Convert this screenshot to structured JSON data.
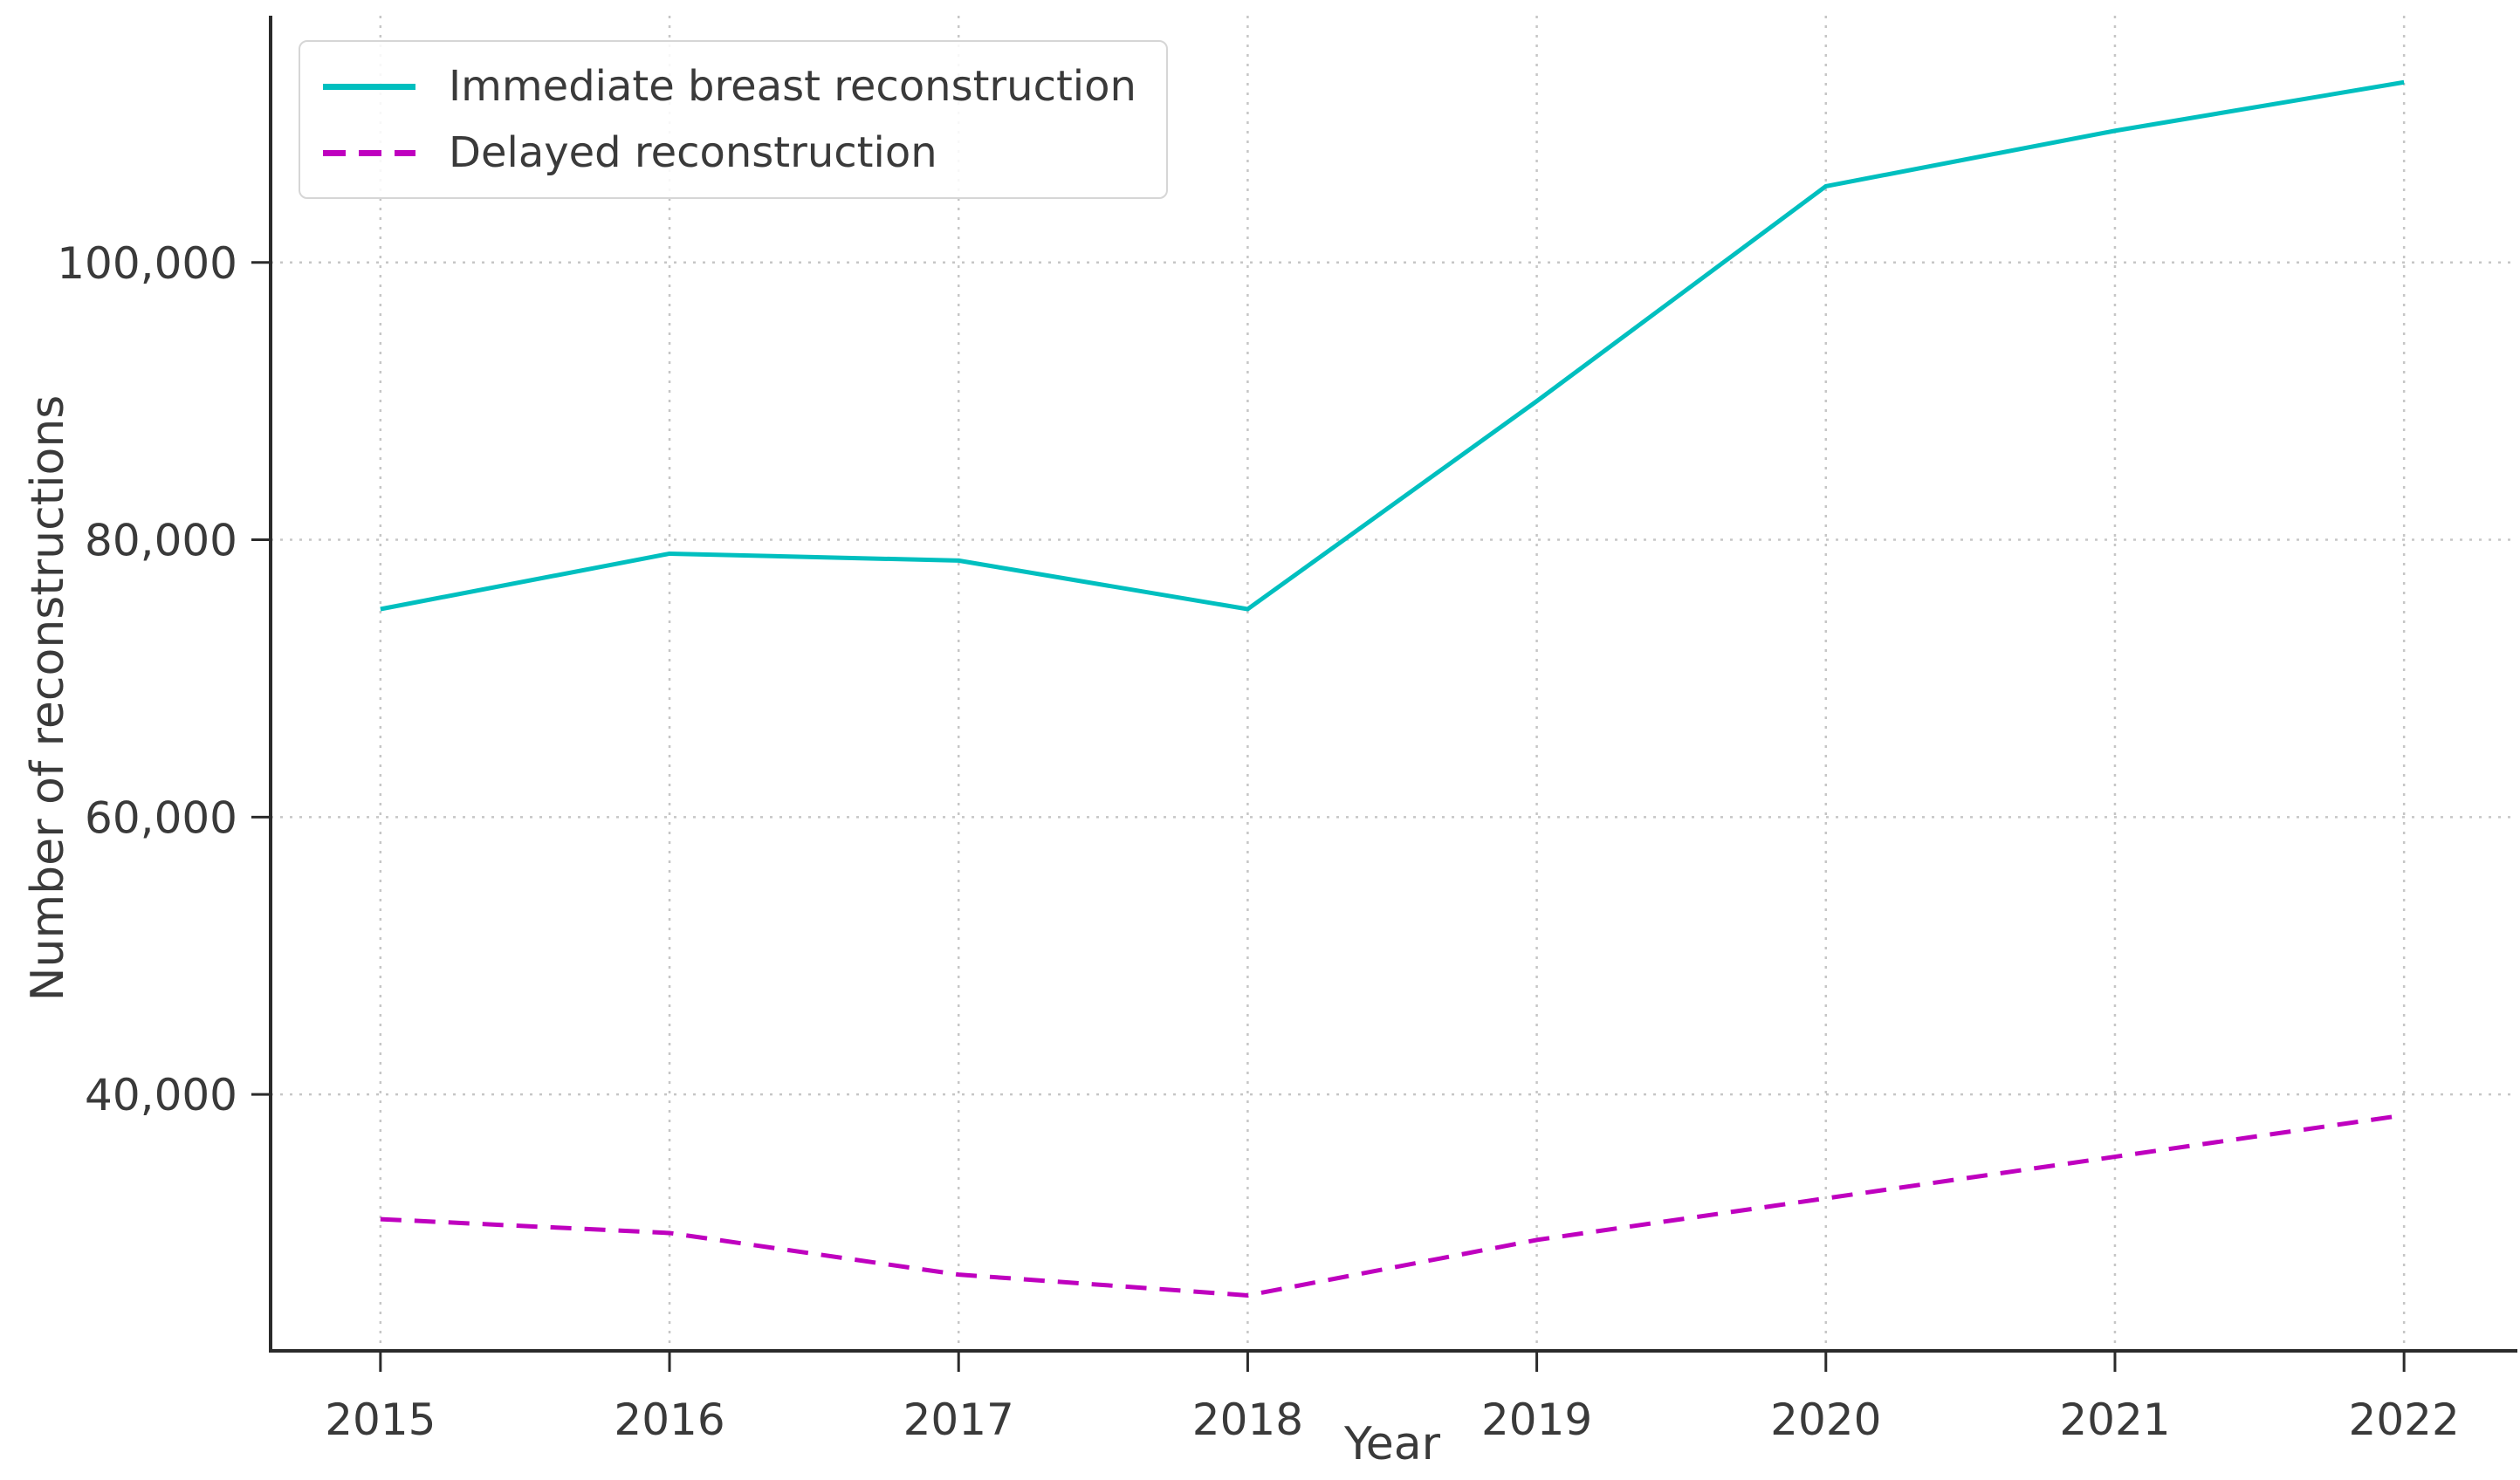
{
  "figure": {
    "background": "#ffffff",
    "text_color": "#3a3a3a",
    "axis_color": "#2b2b2b",
    "grid_color": "#c6c6c6"
  },
  "chart_data": {
    "type": "line",
    "title": "",
    "xlabel": "Year",
    "ylabel": "Number of reconstructions",
    "categories": [
      2015,
      2016,
      2017,
      2018,
      2019,
      2020,
      2021,
      2022
    ],
    "xtick_labels": [
      "2015",
      "2016",
      "2017",
      "2018",
      "2019",
      "2020",
      "2021",
      "2022"
    ],
    "ytick_values": [
      40000,
      60000,
      80000,
      100000
    ],
    "ytick_labels": [
      "40,000",
      "60,000",
      "80,000",
      "100,000"
    ],
    "xlim": [
      2014.62,
      2022.38
    ],
    "ylim": [
      21500,
      117800
    ],
    "grid": true,
    "grid_style": "dotted",
    "legend_position": "upper-left",
    "series": [
      {
        "name": "Immediate breast reconstruction",
        "color": "#00bfbf",
        "style": "solid",
        "values": [
          75000,
          79000,
          78500,
          75000,
          90000,
          105500,
          109500,
          113000
        ]
      },
      {
        "name": "Delayed reconstruction",
        "color": "#bf00bf",
        "style": "dashed",
        "values": [
          31000,
          30000,
          27000,
          25500,
          29500,
          32500,
          35500,
          38500
        ]
      }
    ]
  }
}
